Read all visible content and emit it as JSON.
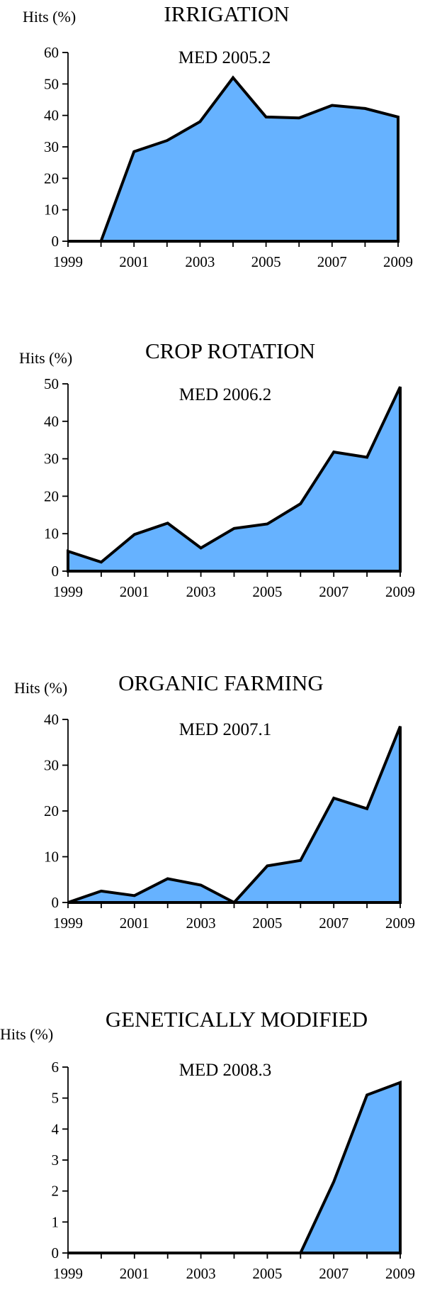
{
  "chart_data": [
    {
      "type": "area",
      "title": "IRRIGATION",
      "subtitle": "MED 2005.2",
      "ylabel": "Hits (%)",
      "x": [
        1999,
        2000,
        2001,
        2002,
        2003,
        2004,
        2005,
        2006,
        2007,
        2008,
        2009
      ],
      "values": [
        0,
        0,
        28.5,
        32,
        38,
        52,
        39.5,
        39.2,
        43.2,
        42.2,
        39.5
      ],
      "xticks": [
        1999,
        2001,
        2003,
        2005,
        2007,
        2009
      ],
      "yticks": [
        0,
        10,
        20,
        30,
        40,
        50,
        60
      ],
      "ylim": [
        0,
        60
      ],
      "grid": false,
      "legend": "none",
      "fill_color": "#66b2ff"
    },
    {
      "type": "area",
      "title": "CROP ROTATION",
      "subtitle": "MED 2006.2",
      "ylabel": "Hits (%)",
      "x": [
        1999,
        2000,
        2001,
        2002,
        2003,
        2004,
        2005,
        2006,
        2007,
        2008,
        2009
      ],
      "values": [
        5.3,
        2.4,
        9.8,
        12.8,
        6.2,
        11.4,
        12.6,
        18.0,
        31.8,
        30.4,
        49.2
      ],
      "xticks": [
        1999,
        2001,
        2003,
        2005,
        2007,
        2009
      ],
      "yticks": [
        0,
        10,
        20,
        30,
        40,
        50
      ],
      "ylim": [
        0,
        50
      ],
      "grid": false,
      "legend": "none",
      "fill_color": "#66b2ff"
    },
    {
      "type": "area",
      "title": "ORGANIC FARMING",
      "subtitle": "MED 2007.1",
      "ylabel": "Hits (%)",
      "x": [
        1999,
        2000,
        2001,
        2002,
        2003,
        2004,
        2005,
        2006,
        2007,
        2008,
        2009
      ],
      "values": [
        0,
        2.5,
        1.5,
        5.2,
        3.8,
        0,
        8.0,
        9.2,
        22.8,
        20.5,
        38.5
      ],
      "xticks": [
        1999,
        2001,
        2003,
        2005,
        2007,
        2009
      ],
      "yticks": [
        0,
        10,
        20,
        30,
        40
      ],
      "ylim": [
        0,
        40
      ],
      "grid": false,
      "legend": "none",
      "fill_color": "#66b2ff"
    },
    {
      "type": "area",
      "title": "GENETICALLY MODIFIED",
      "subtitle": "MED 2008.3",
      "ylabel": "Hits (%)",
      "x": [
        1999,
        2000,
        2001,
        2002,
        2003,
        2004,
        2005,
        2006,
        2007,
        2008,
        2009
      ],
      "values": [
        0,
        0,
        0,
        0,
        0,
        0,
        0,
        0,
        2.3,
        5.1,
        5.5
      ],
      "xticks": [
        1999,
        2001,
        2003,
        2005,
        2007,
        2009
      ],
      "yticks": [
        0,
        1,
        2,
        3,
        4,
        5,
        6
      ],
      "ylim": [
        0,
        6
      ],
      "grid": false,
      "legend": "none",
      "fill_color": "#66b2ff"
    }
  ]
}
